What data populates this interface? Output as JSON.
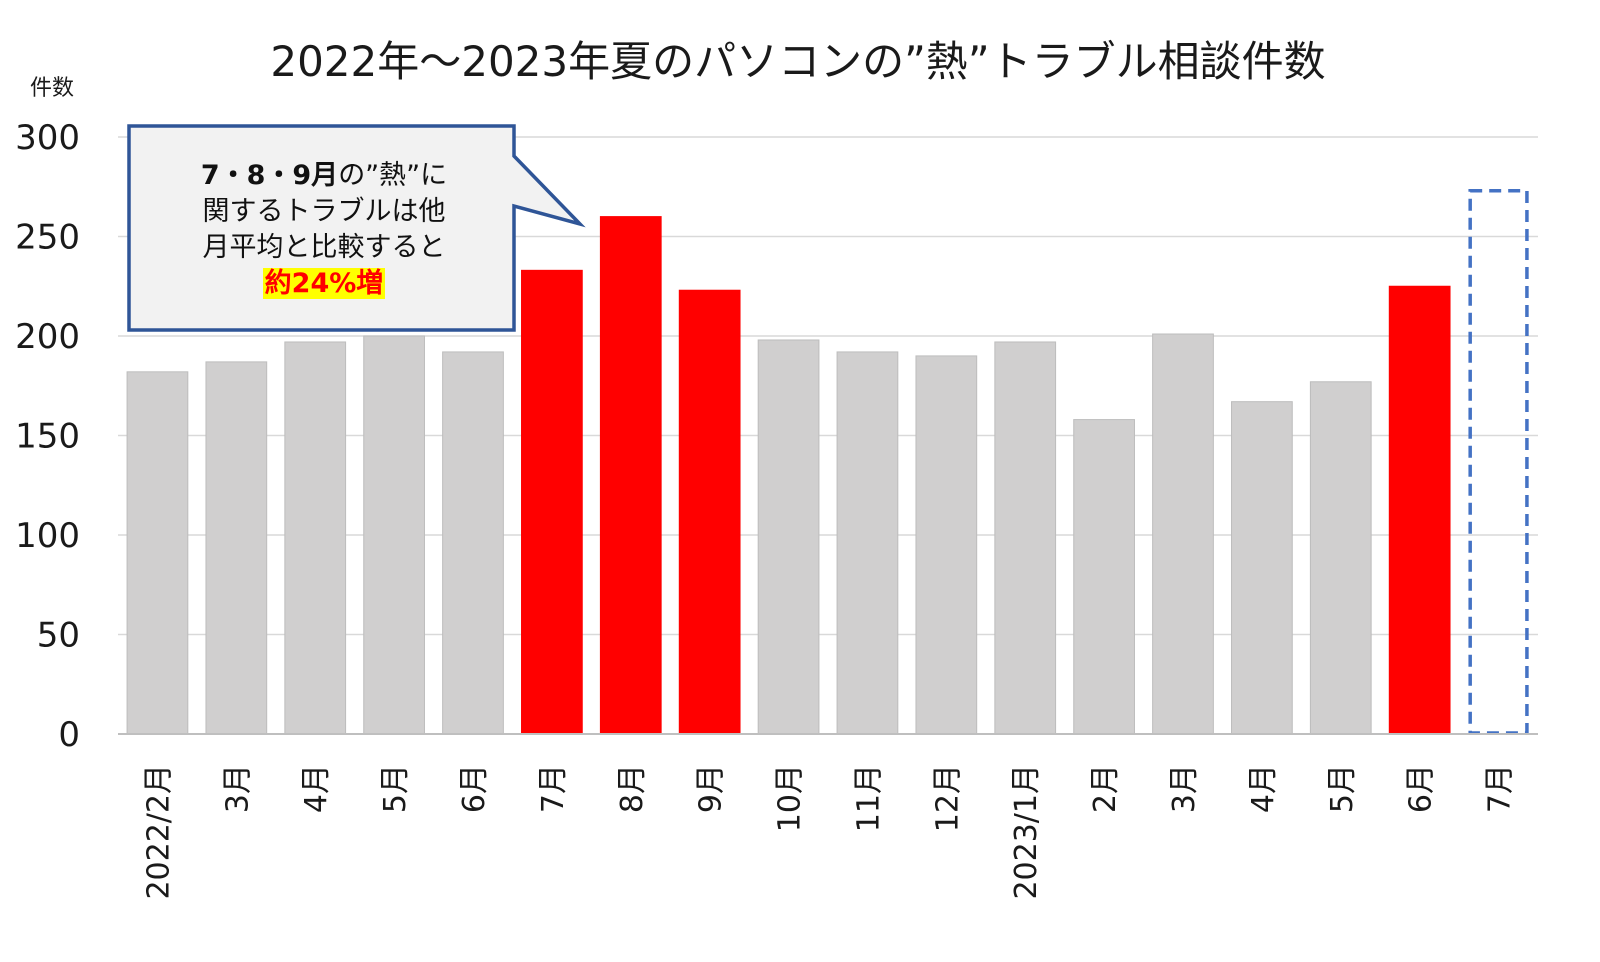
{
  "chart_data": {
    "type": "bar",
    "title": "2022年～2023年夏のパソコンの”熱”トラブル相談件数",
    "ylabel": "件数",
    "ylim": [
      0,
      300
    ],
    "yticks": [
      0,
      50,
      100,
      150,
      200,
      250,
      300
    ],
    "grid": true,
    "categories": [
      "2022/2月",
      "3月",
      "4月",
      "5月",
      "6月",
      "7月",
      "8月",
      "9月",
      "10月",
      "11月",
      "12月",
      "2023/1月",
      "2月",
      "3月",
      "4月",
      "5月",
      "6月",
      "7月"
    ],
    "values": [
      182,
      187,
      197,
      200,
      192,
      233,
      260,
      223,
      198,
      192,
      190,
      197,
      158,
      201,
      167,
      177,
      225,
      273
    ],
    "highlighted": [
      false,
      false,
      false,
      false,
      false,
      true,
      true,
      true,
      false,
      false,
      false,
      false,
      false,
      false,
      false,
      false,
      true,
      false
    ],
    "projected": [
      false,
      false,
      false,
      false,
      false,
      false,
      false,
      false,
      false,
      false,
      false,
      false,
      false,
      false,
      false,
      false,
      false,
      true
    ],
    "colors": {
      "normal": "#d0cfcf",
      "highlight": "#ff0000",
      "projected_border": "#4472c4"
    }
  },
  "callout": {
    "line1_bold": "7・8・9月",
    "line1_rest": "の”熱”に",
    "line2": "関するトラブルは他",
    "line3": "月平均と比較すると",
    "line4": "約24%増",
    "border_color": "#2f5597",
    "fill_color": "#f2f2f2"
  }
}
